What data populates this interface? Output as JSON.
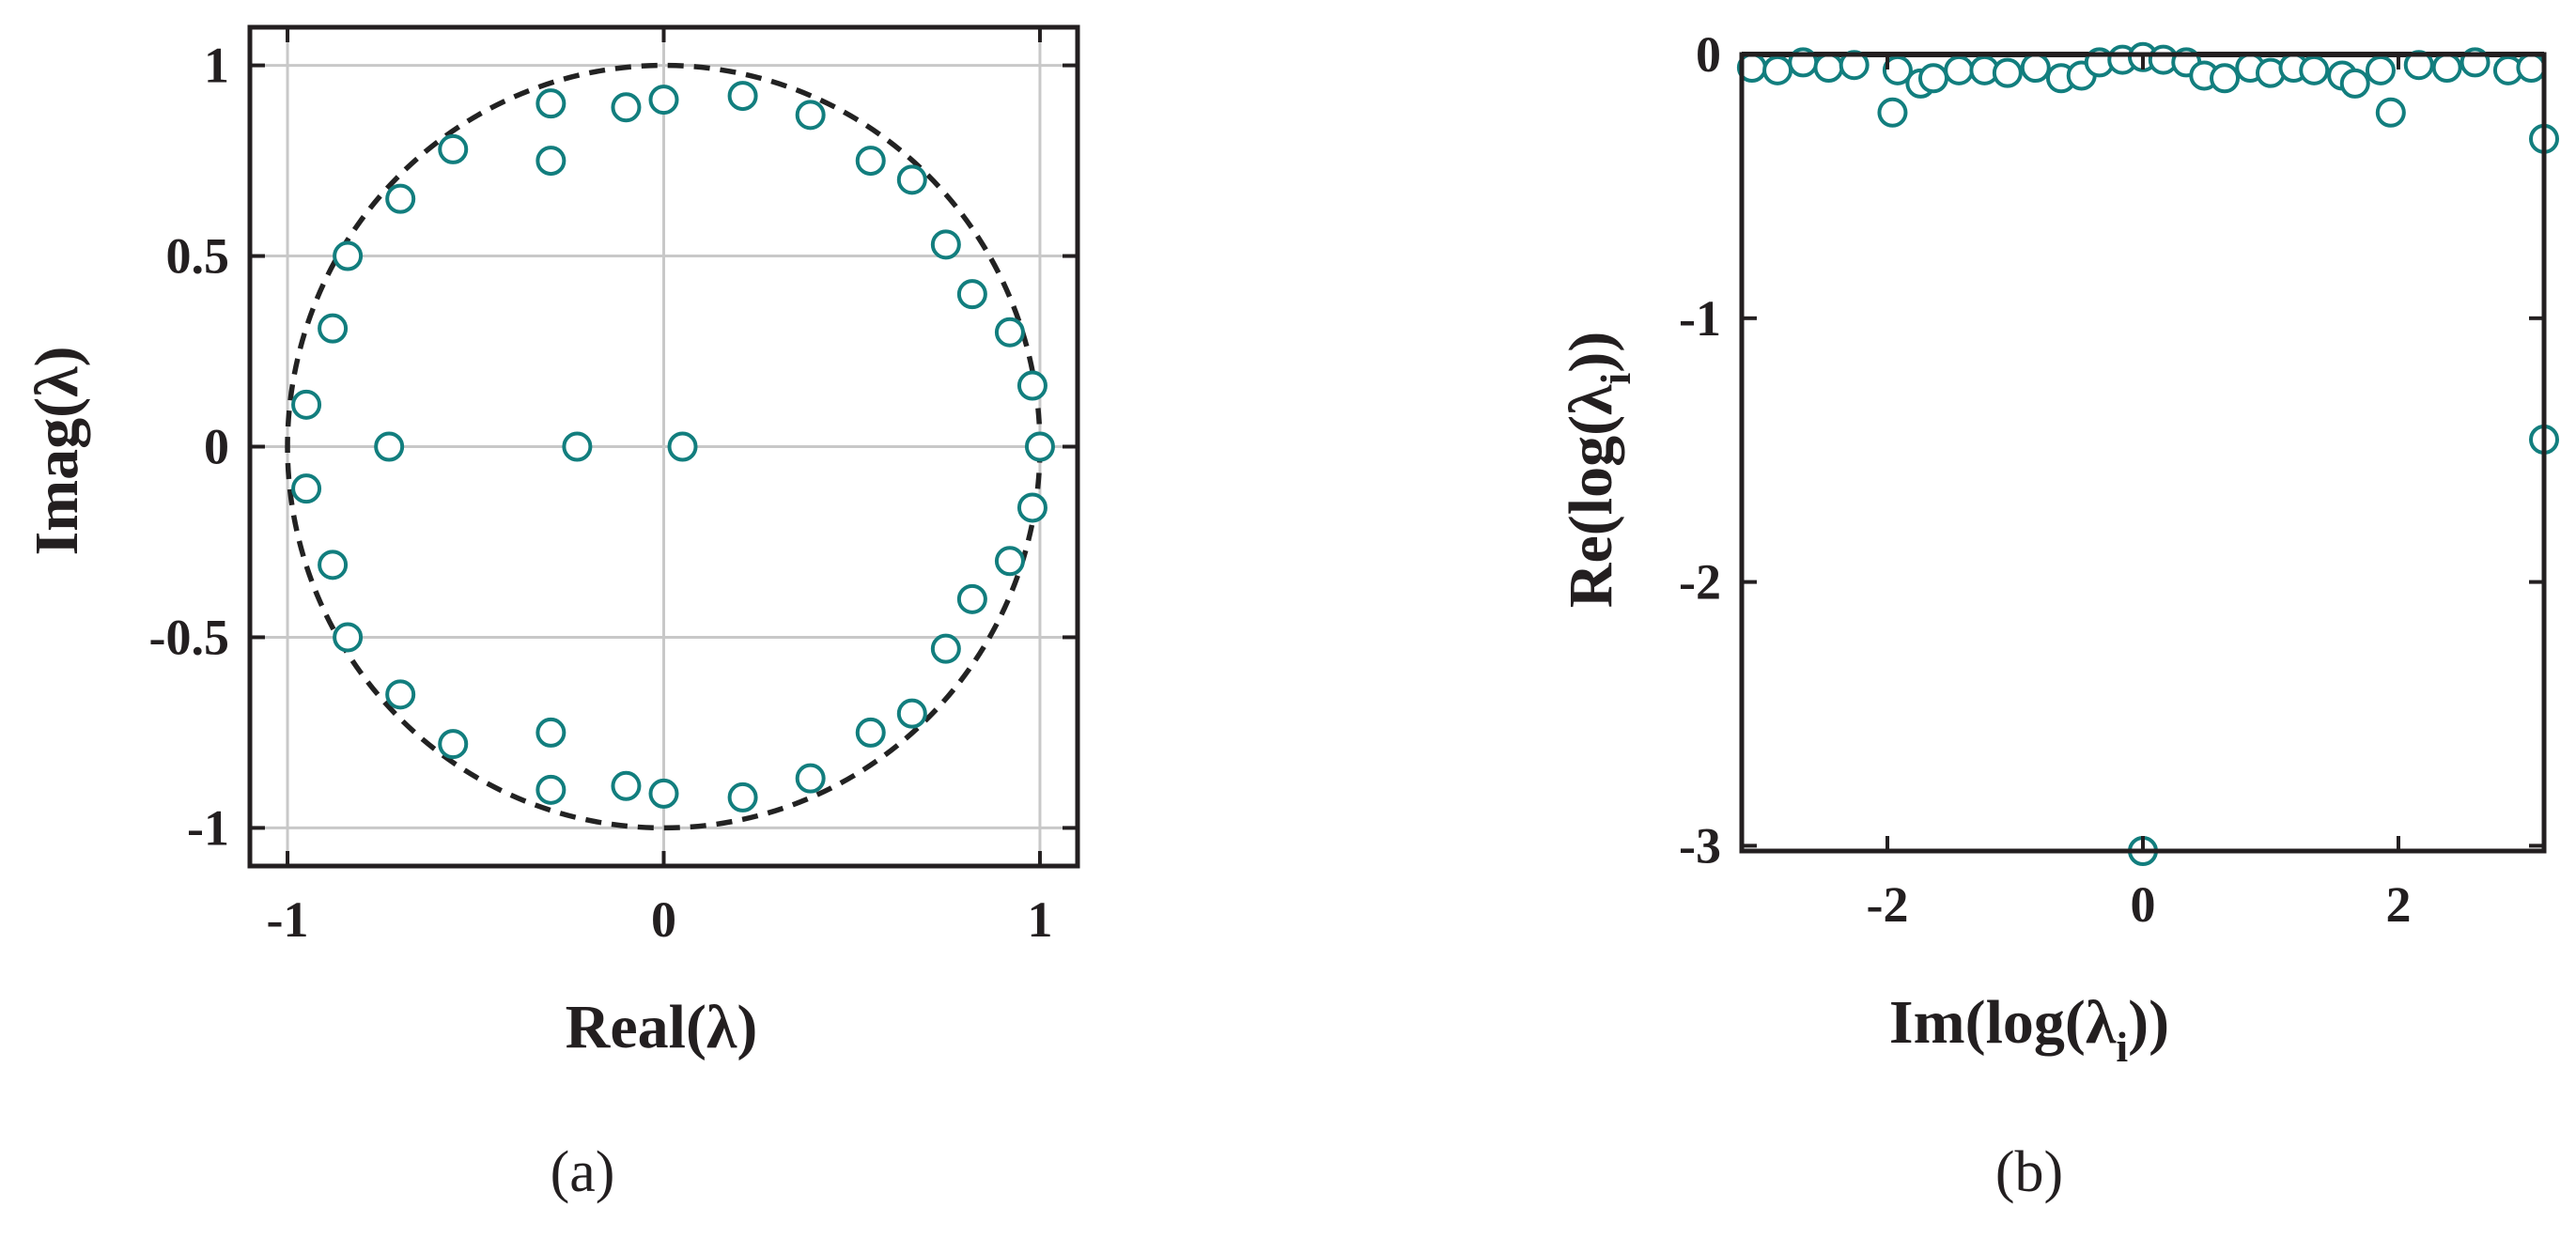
{
  "marker_color": "#127e7e",
  "captions": {
    "a": "(a)",
    "b": "(b)"
  },
  "chart_data": [
    {
      "type": "scatter",
      "xlabel": "Real(λ)",
      "ylabel": "Imag(λ)",
      "xlim": [
        -1.1,
        1.1
      ],
      "ylim": [
        -1.1,
        1.1
      ],
      "xticks": [
        -1,
        0,
        1
      ],
      "xtick_labels": [
        "-1",
        "0",
        "1"
      ],
      "yticks": [
        -1,
        -0.5,
        0,
        0.5,
        1
      ],
      "ytick_labels": [
        "-1",
        "-0.5",
        "0",
        "0.5",
        "1"
      ],
      "grid": true,
      "reference": "unit circle (dashed)",
      "points": [
        [
          -0.3,
          0.9
        ],
        [
          -0.1,
          0.89
        ],
        [
          0.0,
          0.91
        ],
        [
          0.21,
          0.92
        ],
        [
          0.39,
          0.87
        ],
        [
          -0.56,
          0.78
        ],
        [
          -0.3,
          0.75
        ],
        [
          0.55,
          0.75
        ],
        [
          -0.7,
          0.65
        ],
        [
          0.66,
          0.7
        ],
        [
          -0.84,
          0.5
        ],
        [
          0.75,
          0.53
        ],
        [
          0.82,
          0.4
        ],
        [
          -0.88,
          0.31
        ],
        [
          0.92,
          0.3
        ],
        [
          -0.95,
          0.11
        ],
        [
          0.98,
          0.16
        ],
        [
          -0.73,
          0.0
        ],
        [
          -0.23,
          0.0
        ],
        [
          0.05,
          0.0
        ],
        [
          1.0,
          0.0
        ],
        [
          -0.95,
          -0.11
        ],
        [
          0.98,
          -0.16
        ],
        [
          -0.88,
          -0.31
        ],
        [
          0.92,
          -0.3
        ],
        [
          -0.84,
          -0.5
        ],
        [
          0.82,
          -0.4
        ],
        [
          0.75,
          -0.53
        ],
        [
          -0.7,
          -0.65
        ],
        [
          0.66,
          -0.7
        ],
        [
          -0.56,
          -0.78
        ],
        [
          -0.3,
          -0.75
        ],
        [
          0.55,
          -0.75
        ],
        [
          -0.3,
          -0.9
        ],
        [
          -0.1,
          -0.89
        ],
        [
          0.0,
          -0.91
        ],
        [
          0.21,
          -0.92
        ],
        [
          0.39,
          -0.87
        ]
      ]
    },
    {
      "type": "scatter",
      "xlabel": "Im(log(λ",
      "xlabel_sub": "i",
      "xlabel_tail": "))",
      "ylabel": "Re(log(λ",
      "ylabel_sub": "i",
      "ylabel_tail": "))",
      "xlim": [
        -3.14,
        3.14
      ],
      "ylim": [
        -3.02,
        0.0
      ],
      "xticks": [
        -2,
        0,
        2
      ],
      "xtick_labels": [
        "-2",
        "0",
        "2"
      ],
      "yticks": [
        0,
        -1,
        -2,
        -3
      ],
      "ytick_labels": [
        "0",
        "-1",
        "-2",
        "-3"
      ],
      "grid": false,
      "reference": "y = 0 (solid)",
      "points": [
        [
          -3.06,
          -0.05
        ],
        [
          -2.86,
          -0.06
        ],
        [
          -2.66,
          -0.03
        ],
        [
          -2.46,
          -0.05
        ],
        [
          -2.26,
          -0.04
        ],
        [
          -1.96,
          -0.22
        ],
        [
          -1.92,
          -0.06
        ],
        [
          -1.74,
          -0.11
        ],
        [
          -1.64,
          -0.09
        ],
        [
          -1.44,
          -0.06
        ],
        [
          -1.24,
          -0.06
        ],
        [
          -1.06,
          -0.07
        ],
        [
          -0.84,
          -0.05
        ],
        [
          -0.64,
          -0.09
        ],
        [
          -0.48,
          -0.08
        ],
        [
          -0.34,
          -0.03
        ],
        [
          -0.16,
          -0.02
        ],
        [
          0.0,
          -0.01
        ],
        [
          0.16,
          -0.02
        ],
        [
          0.34,
          -0.03
        ],
        [
          0.48,
          -0.08
        ],
        [
          0.64,
          -0.09
        ],
        [
          0.84,
          -0.05
        ],
        [
          1.0,
          -0.07
        ],
        [
          1.18,
          -0.05
        ],
        [
          1.34,
          -0.06
        ],
        [
          1.56,
          -0.08
        ],
        [
          1.66,
          -0.11
        ],
        [
          1.86,
          -0.06
        ],
        [
          1.94,
          -0.22
        ],
        [
          2.16,
          -0.04
        ],
        [
          2.38,
          -0.05
        ],
        [
          2.6,
          -0.03
        ],
        [
          2.86,
          -0.06
        ],
        [
          3.04,
          -0.05
        ],
        [
          3.14,
          -0.32
        ],
        [
          3.14,
          -1.46
        ],
        [
          0.0,
          -3.02
        ]
      ]
    }
  ]
}
